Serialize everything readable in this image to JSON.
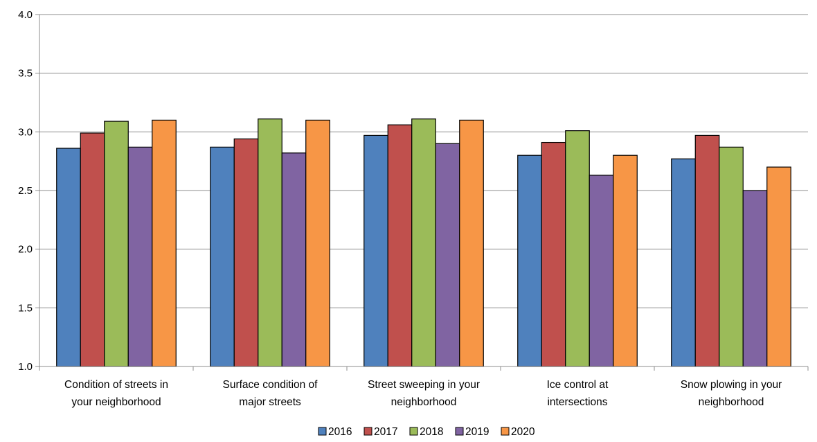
{
  "chart_data": {
    "type": "bar",
    "categories": [
      [
        "Condition of streets in",
        "your neighborhood"
      ],
      [
        "Surface condition of",
        "major streets"
      ],
      [
        "Street sweeping in your",
        "neighborhood"
      ],
      [
        "Ice control at",
        "intersections"
      ],
      [
        "Snow plowing in your",
        "neighborhood"
      ]
    ],
    "series": [
      {
        "name": "2016",
        "color": "#4F81BD",
        "values": [
          2.86,
          2.87,
          2.97,
          2.8,
          2.77
        ]
      },
      {
        "name": "2017",
        "color": "#C0504D",
        "values": [
          2.99,
          2.94,
          3.06,
          2.91,
          2.97
        ]
      },
      {
        "name": "2018",
        "color": "#9BBB59",
        "values": [
          3.09,
          3.11,
          3.11,
          3.01,
          2.87
        ]
      },
      {
        "name": "2019",
        "color": "#8064A2",
        "values": [
          2.87,
          2.82,
          2.9,
          2.63,
          2.5
        ]
      },
      {
        "name": "2020",
        "color": "#F79646",
        "values": [
          3.1,
          3.1,
          3.1,
          2.8,
          2.7
        ]
      }
    ],
    "ylim": [
      1.0,
      4.0
    ],
    "yticks": [
      "1.0",
      "1.5",
      "2.0",
      "2.5",
      "3.0",
      "3.5",
      "4.0"
    ],
    "grid": true,
    "legend_position": "bottom"
  }
}
